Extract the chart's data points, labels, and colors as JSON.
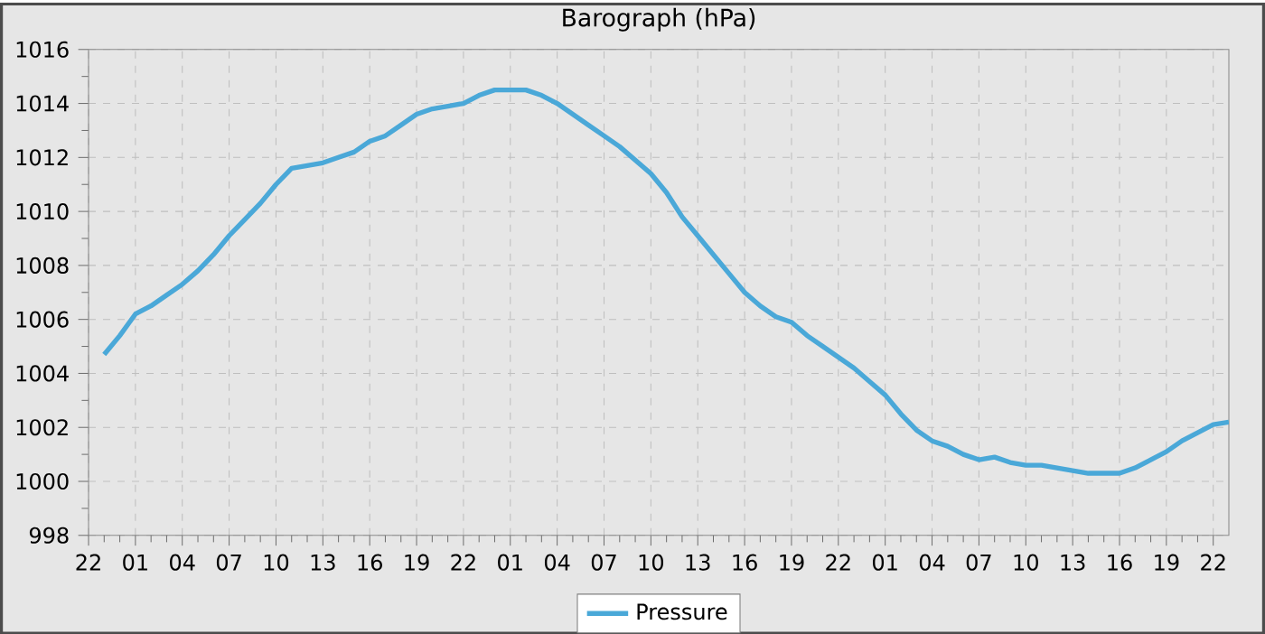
{
  "chart_data": {
    "type": "line",
    "title": "Barograph (hPa)",
    "categories": [
      "22",
      null,
      null,
      "01",
      null,
      null,
      "04",
      null,
      null,
      "07",
      null,
      null,
      "10",
      null,
      null,
      "13",
      null,
      null,
      "16",
      null,
      null,
      "19",
      null,
      null,
      "22",
      null,
      null,
      "01",
      null,
      null,
      "04",
      null,
      null,
      "07",
      null,
      null,
      "10",
      null,
      null,
      "13",
      null,
      null,
      "16",
      null,
      null,
      "19",
      null,
      null,
      "22",
      null,
      null,
      "01",
      null,
      null,
      "04",
      null,
      null,
      "07",
      null,
      null,
      "10",
      null,
      null,
      "13",
      null,
      null,
      "16",
      null,
      null,
      "19",
      null,
      null,
      "22",
      null
    ],
    "series": [
      {
        "name": "Pressure",
        "color": "#4aa8d8",
        "values": [
          null,
          1004.7,
          1005.4,
          1006.2,
          1006.5,
          1006.9,
          1007.3,
          1007.8,
          1008.4,
          1009.1,
          1009.7,
          1010.3,
          1011.0,
          1011.6,
          1011.7,
          1011.8,
          1012.0,
          1012.2,
          1012.6,
          1012.8,
          1013.2,
          1013.6,
          1013.8,
          1013.9,
          1014.0,
          1014.3,
          1014.5,
          1014.5,
          1014.5,
          1014.3,
          1014.0,
          1013.6,
          1013.2,
          1012.8,
          1012.4,
          1011.9,
          1011.4,
          1010.7,
          1009.8,
          1009.1,
          1008.4,
          1007.7,
          1007.0,
          1006.5,
          1006.1,
          1005.9,
          1005.4,
          1005.0,
          1004.6,
          1004.2,
          1003.7,
          1003.2,
          1002.5,
          1001.9,
          1001.5,
          1001.3,
          1001.0,
          1000.8,
          1000.9,
          1000.7,
          1000.6,
          1000.6,
          1000.5,
          1000.4,
          1000.3,
          1000.3,
          1000.3,
          1000.5,
          1000.8,
          1001.1,
          1001.5,
          1001.8,
          1002.1,
          1002.2
        ]
      }
    ],
    "ylim": [
      998,
      1016
    ],
    "yticks": [
      998,
      1000,
      1002,
      1004,
      1006,
      1008,
      1010,
      1012,
      1014,
      1016
    ],
    "grid": true,
    "legend": "bottom"
  }
}
